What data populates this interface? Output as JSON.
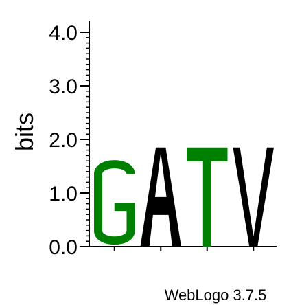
{
  "chart_data": {
    "type": "sequence-logo",
    "ylabel": "bits",
    "ylim": [
      0,
      4
    ],
    "yticks": [
      "0.0",
      "1.0",
      "2.0",
      "3.0",
      "4.0"
    ],
    "positions": [
      {
        "letter": "G",
        "bits": 1.65,
        "color": "#008000"
      },
      {
        "letter": "A",
        "bits": 1.85,
        "color": "#000000"
      },
      {
        "letter": "T",
        "bits": 1.85,
        "color": "#008000"
      },
      {
        "letter": "V",
        "bits": 1.85,
        "color": "#000000"
      }
    ],
    "grid": false
  },
  "footer": {
    "credit": "WebLogo 3.7.5"
  }
}
